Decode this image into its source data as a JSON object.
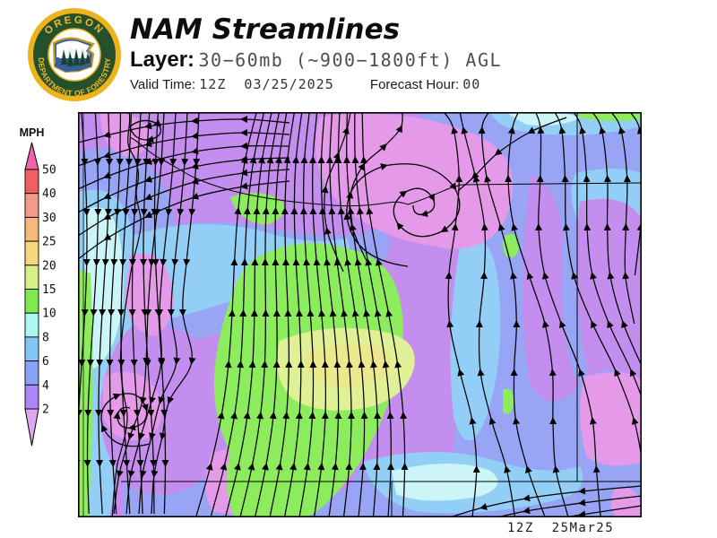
{
  "header": {
    "title": "NAM Streamlines",
    "layer_label": "Layer:",
    "layer_value": "30−60mb (~900−1800ft) AGL",
    "valid_label": "Valid Time:",
    "valid_value": "12Z  03/25/2025",
    "forecast_hour_label": "Forecast Hour:",
    "forecast_hour_value": "00"
  },
  "logo": {
    "top_text": "OREGON",
    "bottom_text": "DEPARTMENT OF FORESTRY",
    "ring_color": "#edb31c",
    "disc_color": "#24512b",
    "text_color": "#f0b929"
  },
  "legend": {
    "title": "MPH",
    "unit": "MPH",
    "boundary_values": [
      "50",
      "40",
      "30",
      "25",
      "20",
      "15",
      "10",
      "8",
      "6",
      "4",
      "2"
    ],
    "segment_colors": [
      "#f25f5f",
      "#f49a88",
      "#f6b97d",
      "#f7d77e",
      "#d8ef87",
      "#7fe94f",
      "#aff5f0",
      "#84c6f3",
      "#8aa2f5",
      "#ae86f3"
    ],
    "above_max_color": "#f263a8",
    "below_min_color": "#dda6ef"
  },
  "map": {
    "caption": "12Z  25Mar25",
    "stream_color": "#000000",
    "field_colors": {
      "calm_pink": "#e59ae9",
      "violet_2_4": "#c48eee",
      "blue_4_6": "#97a5f4",
      "cyan_6_8": "#93cef6",
      "pale_cyan_8_10": "#ccf5f8",
      "green_10_15": "#8cec5e",
      "yellow_green_15_20": "#dff096",
      "gold_20_25": "#ebe88e"
    }
  }
}
